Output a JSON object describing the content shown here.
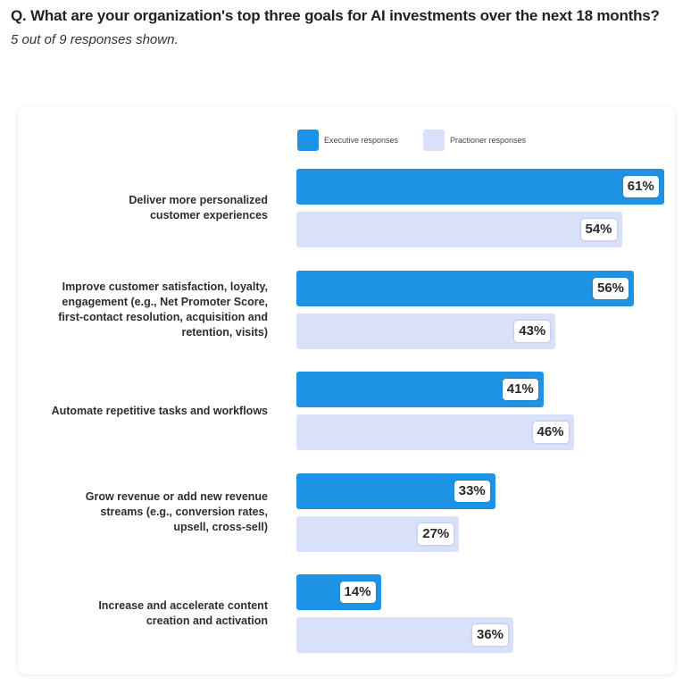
{
  "header": {
    "question": "Q. What are your organization's top three goals for AI investments over the next 18 months?",
    "subtitle": "5 out of 9 responses shown."
  },
  "colors": {
    "executive": "#1e93e5",
    "practitioner": "#d8e0fa"
  },
  "chart_data": {
    "type": "bar",
    "orientation": "horizontal",
    "title": "",
    "xlabel": "",
    "ylabel": "",
    "xlim": [
      0,
      100
    ],
    "grid": false,
    "legend_position": "top",
    "categories": [
      "Deliver more personalized customer experiences",
      "Improve customer satisfaction, loyalty, engagement (e.g., Net Promoter Score, first-contact resolution, acquisition and retention, visits)",
      "Automate repetitive tasks and workflows",
      "Grow revenue or add new revenue streams (e.g., conversion rates, upsell, cross-sell)",
      "Increase and accelerate content creation and activation"
    ],
    "series": [
      {
        "name": "Executive responses",
        "values": [
          61,
          56,
          41,
          33,
          14
        ],
        "labels": [
          "61%",
          "56%",
          "41%",
          "33%",
          "14%"
        ]
      },
      {
        "name": "Practioner responses",
        "values": [
          54,
          43,
          46,
          27,
          36
        ],
        "labels": [
          "54%",
          "43%",
          "46%",
          "27%",
          "36%"
        ]
      }
    ]
  }
}
